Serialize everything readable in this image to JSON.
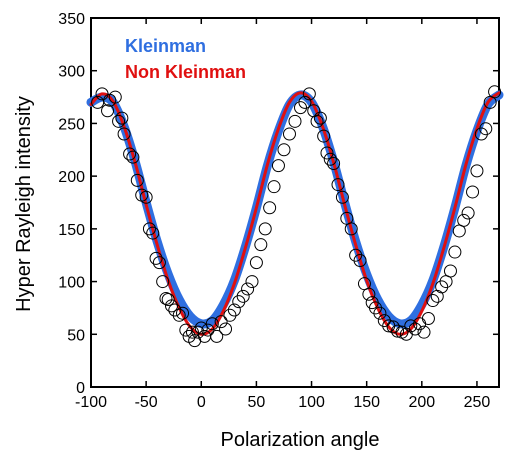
{
  "chart_data": {
    "type": "scatter",
    "xlabel": "Polarization angle",
    "ylabel": "Hyper Rayleigh intensity",
    "xlim": [
      -100,
      270
    ],
    "ylim": [
      0,
      350
    ],
    "xticks": [
      -100,
      -50,
      0,
      50,
      100,
      150,
      200,
      250
    ],
    "yticks": [
      0,
      50,
      100,
      150,
      200,
      250,
      300,
      350
    ],
    "grid": false,
    "legend": "top-left",
    "series": [
      {
        "name": "Kleinman",
        "color": "#2f6fe0",
        "kind": "line",
        "x": [
          -100,
          -90,
          -80,
          -70,
          -60,
          -50,
          -40,
          -30,
          -20,
          -10,
          0,
          10,
          20,
          30,
          40,
          50,
          60,
          70,
          80,
          90,
          100,
          110,
          120,
          130,
          140,
          150,
          160,
          170,
          180,
          190,
          200,
          210,
          220,
          230,
          240,
          250,
          260,
          270
        ],
        "y": [
          270,
          275,
          270,
          247,
          214,
          175,
          138,
          107,
          83,
          67,
          60,
          63,
          78,
          101,
          133,
          170,
          210,
          243,
          268,
          277,
          270,
          247,
          214,
          175,
          138,
          107,
          83,
          67,
          60,
          63,
          78,
          101,
          133,
          170,
          210,
          243,
          268,
          277
        ]
      },
      {
        "name": "Non Kleinman",
        "color": "#e01010",
        "kind": "line",
        "x": [
          -100,
          -90,
          -80,
          -70,
          -60,
          -50,
          -40,
          -30,
          -20,
          -10,
          0,
          10,
          20,
          30,
          40,
          50,
          60,
          70,
          80,
          90,
          100,
          110,
          120,
          130,
          140,
          150,
          160,
          170,
          180,
          190,
          200,
          210,
          220,
          230,
          240,
          250,
          260,
          270
        ],
        "y": [
          268,
          278,
          271,
          247,
          213,
          173,
          135,
          101,
          75,
          57,
          50,
          55,
          72,
          98,
          132,
          170,
          211,
          245,
          270,
          279,
          271,
          247,
          213,
          173,
          135,
          101,
          75,
          57,
          50,
          55,
          72,
          98,
          132,
          170,
          211,
          245,
          270,
          279
        ]
      },
      {
        "name": "",
        "kind": "scatter",
        "color": "#000000",
        "x": [
          -94,
          -90,
          -85,
          -83,
          -78,
          -75,
          -72,
          -70,
          -65,
          -62,
          -58,
          -54,
          -50,
          -47,
          -44,
          -41,
          -38,
          -35,
          -32,
          -30,
          -27,
          -24,
          -20,
          -17,
          -14,
          -11,
          -8,
          -6,
          -3,
          0,
          3,
          6,
          10,
          14,
          18,
          22,
          26,
          30,
          34,
          38,
          42,
          46,
          50,
          54,
          58,
          62,
          66,
          70,
          75,
          80,
          85,
          90,
          94,
          98,
          102,
          105,
          108,
          111,
          114,
          117,
          120,
          124,
          128,
          132,
          136,
          140,
          144,
          148,
          152,
          155,
          158,
          162,
          166,
          170,
          174,
          178,
          182,
          186,
          190,
          194,
          198,
          202,
          206,
          210,
          214,
          218,
          222,
          226,
          230,
          234,
          238,
          242,
          246,
          250,
          254,
          258,
          262,
          266
        ],
        "y": [
          270,
          278,
          262,
          272,
          275,
          252,
          255,
          240,
          221,
          218,
          196,
          182,
          180,
          150,
          146,
          122,
          118,
          100,
          84,
          83,
          77,
          73,
          68,
          70,
          54,
          48,
          52,
          44,
          52,
          56,
          48,
          54,
          60,
          48,
          62,
          55,
          68,
          73,
          81,
          86,
          93,
          100,
          118,
          135,
          150,
          170,
          190,
          210,
          225,
          240,
          252,
          265,
          270,
          278,
          262,
          252,
          255,
          238,
          222,
          216,
          212,
          192,
          180,
          160,
          150,
          125,
          120,
          98,
          88,
          80,
          75,
          70,
          63,
          58,
          57,
          53,
          52,
          50,
          58,
          55,
          60,
          52,
          65,
          82,
          86,
          95,
          100,
          110,
          128,
          148,
          158,
          165,
          185,
          205,
          240,
          245,
          270,
          280
        ]
      }
    ]
  }
}
